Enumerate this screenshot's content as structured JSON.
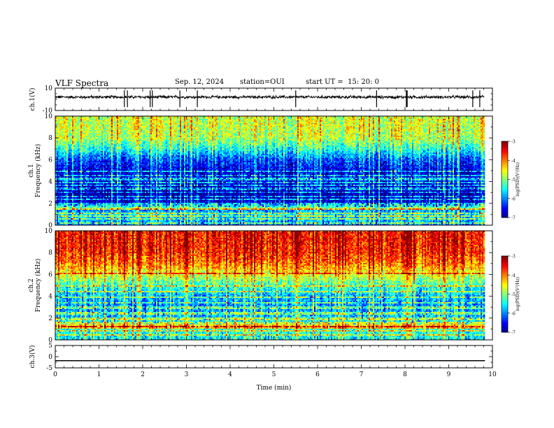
{
  "header": {
    "title": "VLF Spectra",
    "date": "Sep. 12, 2024",
    "station": "station=OUI",
    "start": "start UT =  15: 20: 0"
  },
  "chart_data": [
    {
      "type": "line",
      "panel": "ch1-waveform",
      "ylabel": "ch.1(V)",
      "ylim": [
        -10,
        10
      ],
      "yticks": [
        10,
        -10
      ],
      "xlim": [
        0,
        9.83
      ],
      "x": [
        0,
        1,
        2,
        3,
        4,
        5,
        6,
        7,
        8,
        9,
        9.83
      ],
      "values": [
        2,
        2,
        2,
        2,
        2,
        2,
        2,
        2,
        2,
        2,
        2
      ],
      "noise_amplitude": 1,
      "spike_x": [
        1.58,
        1.65,
        2.17,
        2.22,
        2.85,
        3.25,
        5.5,
        7.35,
        8.03,
        8.05,
        9.55,
        9.71
      ]
    },
    {
      "type": "heatmap",
      "panel": "ch1-spectrogram",
      "ylabel": "Frequency (kHz)",
      "channel_label": "ch.1",
      "ylim": [
        0,
        10
      ],
      "yticks": [
        0,
        2,
        4,
        6,
        8,
        10
      ],
      "xlim": [
        0,
        9.83
      ],
      "colorbar": {
        "label": "log(PSD)(V²/Hz)",
        "ticks": [
          -3,
          -4,
          -5,
          -6,
          -7
        ],
        "range": [
          -7,
          -3
        ]
      },
      "frequency_profile_khz": [
        0,
        1,
        2,
        3,
        4,
        5,
        6,
        7,
        8,
        9,
        10
      ],
      "log_psd_profile": [
        -6.0,
        -5.6,
        -6.6,
        -6.9,
        -6.5,
        -6.6,
        -6.2,
        -5.4,
        -4.8,
        -4.7,
        -4.7
      ],
      "horizontal_lines_khz": [
        0.3,
        0.6,
        0.9,
        1.2,
        1.5,
        1.75,
        2.0,
        2.4,
        2.7,
        3.1,
        3.4,
        3.7,
        4.0,
        4.3,
        4.6,
        5.0
      ],
      "bright_band_khz": [
        1.4,
        1.7
      ]
    },
    {
      "type": "heatmap",
      "panel": "ch2-spectrogram",
      "ylabel": "Frequency (kHz)",
      "channel_label": "ch.2",
      "ylim": [
        0,
        10
      ],
      "yticks": [
        0,
        2,
        4,
        6,
        8,
        10
      ],
      "xlim": [
        0,
        9.83
      ],
      "colorbar": {
        "label": "log(PSD)(V²/Hz)",
        "ticks": [
          -3,
          -4,
          -5,
          -6,
          -7
        ],
        "range": [
          -7,
          -3
        ]
      },
      "frequency_profile_khz": [
        0,
        1,
        2,
        3,
        4,
        5,
        6,
        7,
        8,
        9,
        10
      ],
      "log_psd_profile": [
        -5.6,
        -5.3,
        -5.7,
        -6.0,
        -5.8,
        -5.3,
        -4.6,
        -4.0,
        -3.7,
        -3.6,
        -3.6
      ],
      "horizontal_lines_khz": [
        0.5,
        0.9,
        1.3,
        1.6,
        2.0,
        2.5,
        3.0,
        3.5,
        4.0,
        4.5,
        5.0,
        6.2
      ],
      "bright_band_khz": [
        1.0,
        1.4
      ]
    },
    {
      "type": "line",
      "panel": "ch3-waveform",
      "ylabel": "ch.3(V)",
      "xlabel": "Time (min)",
      "ylim": [
        -5,
        5
      ],
      "yticks": [
        5,
        0,
        -5
      ],
      "xlim": [
        0,
        10
      ],
      "xticks": [
        0,
        1,
        2,
        3,
        4,
        5,
        6,
        7,
        8,
        9,
        10
      ],
      "x": [
        0,
        9.83
      ],
      "values": [
        -1.8,
        -1.8
      ]
    }
  ]
}
